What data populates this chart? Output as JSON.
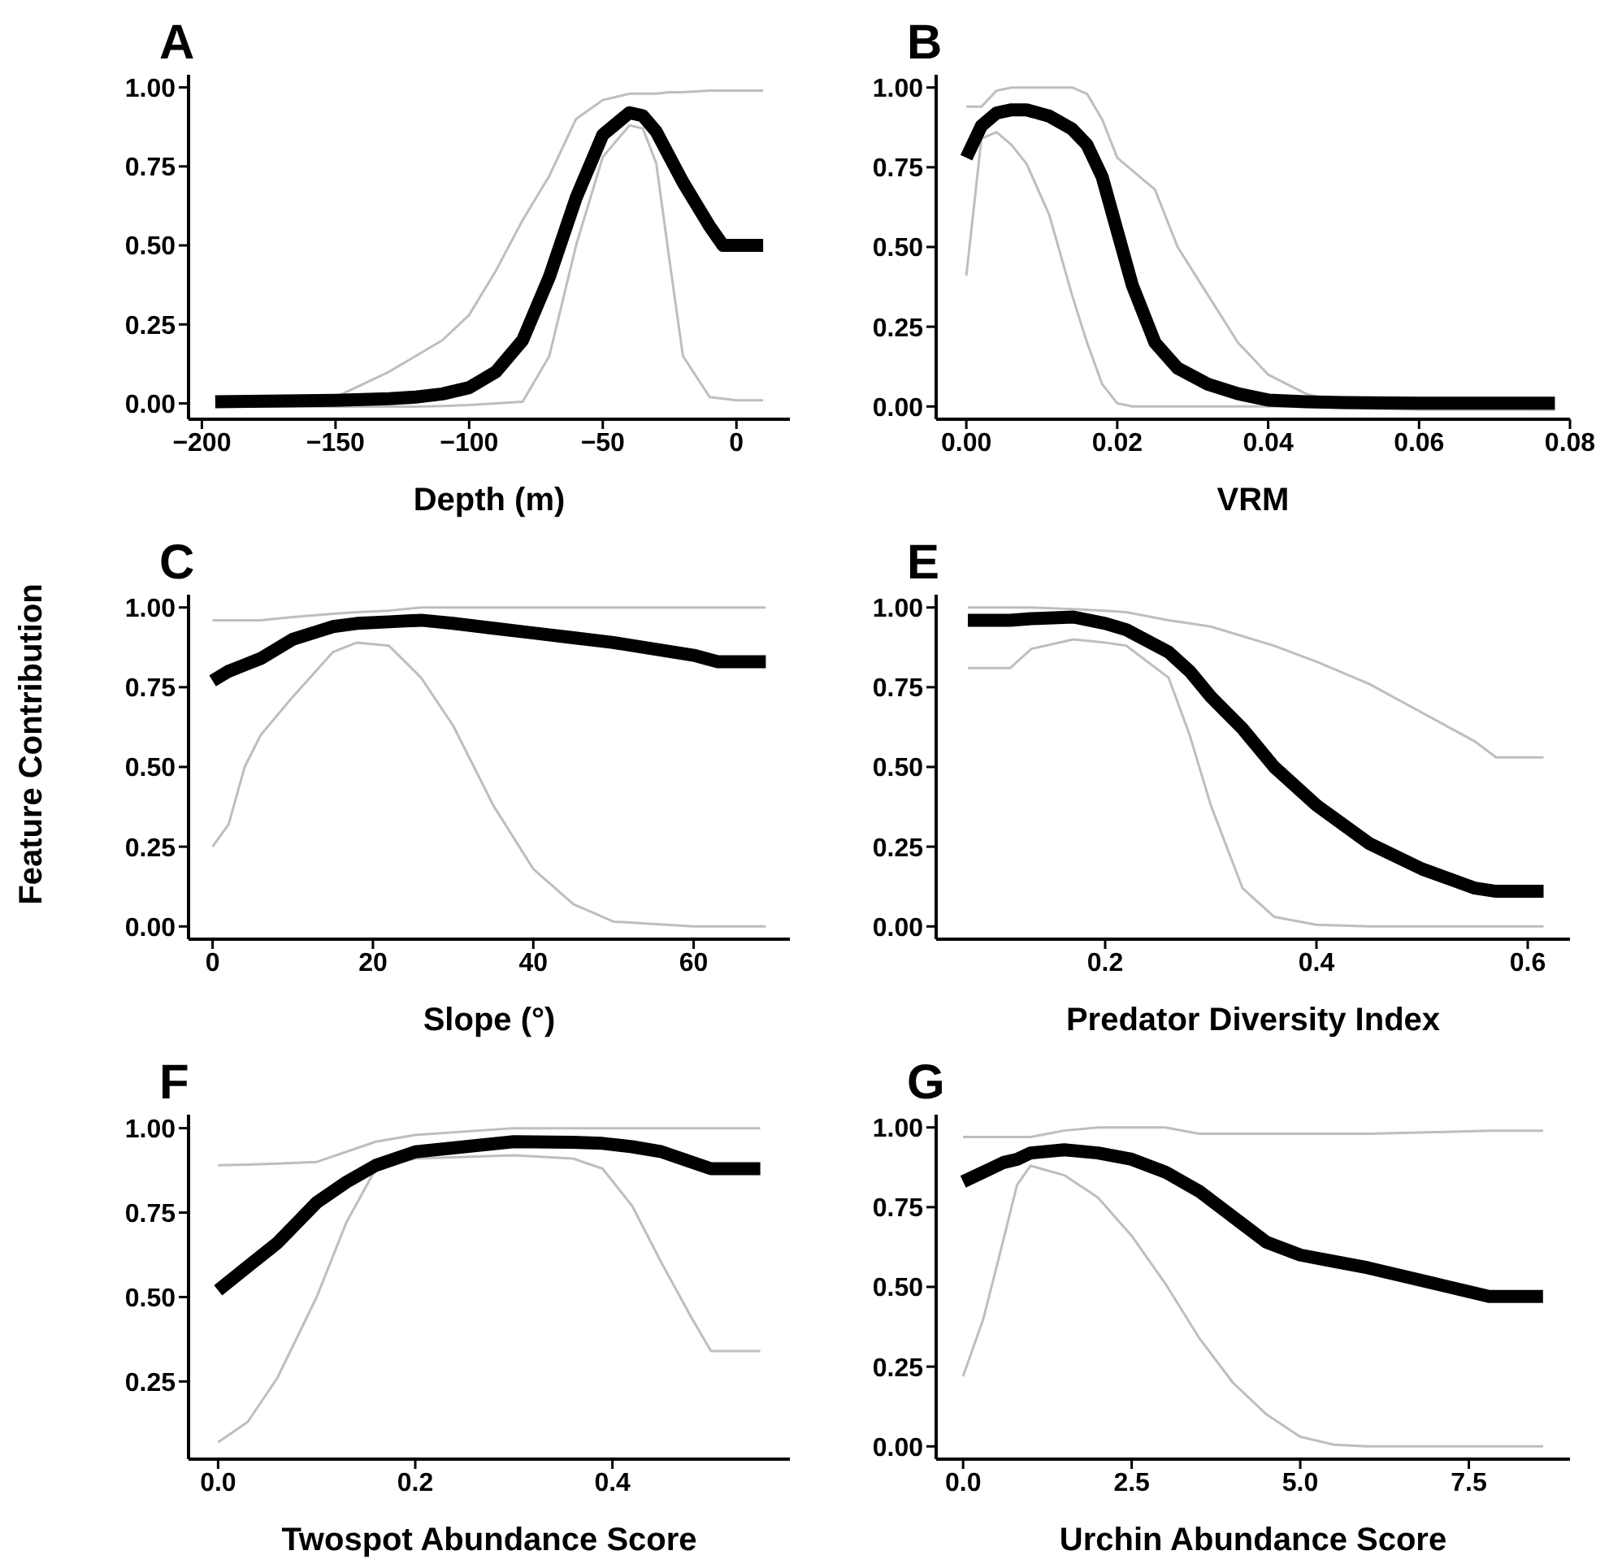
{
  "chart_data": [
    {
      "type": "line",
      "title": "A",
      "xlabel": "Depth (m)",
      "xlim": [
        -205,
        20
      ],
      "xticks": [
        {
          "value": -200,
          "label": "−200"
        },
        {
          "value": -150,
          "label": "−150"
        },
        {
          "value": -100,
          "label": "−100"
        },
        {
          "value": -50,
          "label": "−50"
        },
        0
      ],
      "ylim": [
        -0.05,
        1.04
      ],
      "yticks": [
        {
          "value": 0,
          "label": "0.00"
        },
        {
          "value": 0.25,
          "label": "0.25"
        },
        {
          "value": 0.5,
          "label": "0.50"
        },
        {
          "value": 0.75,
          "label": "0.75"
        },
        {
          "value": 1,
          "label": "1.00"
        }
      ],
      "x": [
        -195,
        -150,
        -130,
        -120,
        -110,
        -100,
        -90,
        -80,
        -70,
        -60,
        -50,
        -40,
        -35,
        -30,
        -25,
        -20,
        -10,
        -5,
        0,
        10
      ],
      "series": [
        {
          "color": "#bebebe",
          "values": [
            0.02,
            0.02,
            0.1,
            0.15,
            0.2,
            0.28,
            0.42,
            0.58,
            0.72,
            0.9,
            0.96,
            0.98,
            0.98,
            0.98,
            0.985,
            0.985,
            0.99,
            0.99,
            0.99,
            0.99
          ]
        },
        {
          "color": "#bebebe",
          "values": [
            -0.01,
            -0.01,
            -0.01,
            -0.01,
            -0.008,
            -0.005,
            0,
            0.005,
            0.15,
            0.5,
            0.78,
            0.88,
            0.87,
            0.76,
            0.45,
            0.15,
            0.02,
            0.015,
            0.01,
            0.01
          ]
        },
        {
          "color": "#000000",
          "values": [
            0.005,
            0.01,
            0.015,
            0.02,
            0.03,
            0.05,
            0.1,
            0.2,
            0.4,
            0.65,
            0.85,
            0.92,
            0.91,
            0.86,
            0.78,
            0.7,
            0.56,
            0.5,
            0.5,
            0.5
          ]
        }
      ]
    },
    {
      "type": "line",
      "title": "B",
      "xlabel": "VRM",
      "xlim": [
        -0.004,
        0.08
      ],
      "xticks": [
        {
          "value": 0,
          "label": "0.00"
        },
        {
          "value": 0.02,
          "label": "0.02"
        },
        {
          "value": 0.04,
          "label": "0.04"
        },
        {
          "value": 0.06,
          "label": "0.06"
        },
        {
          "value": 0.08,
          "label": "0.08"
        }
      ],
      "ylim": [
        -0.04,
        1.04
      ],
      "yticks": [
        {
          "value": 0,
          "label": "0.00"
        },
        {
          "value": 0.25,
          "label": "0.25"
        },
        {
          "value": 0.5,
          "label": "0.50"
        },
        {
          "value": 0.75,
          "label": "0.75"
        },
        {
          "value": 1,
          "label": "1.00"
        }
      ],
      "x": [
        0,
        0.002,
        0.004,
        0.006,
        0.008,
        0.011,
        0.014,
        0.016,
        0.018,
        0.02,
        0.022,
        0.025,
        0.028,
        0.032,
        0.036,
        0.04,
        0.045,
        0.05,
        0.06,
        0.078
      ],
      "series": [
        {
          "color": "#bebebe",
          "values": [
            0.94,
            0.94,
            0.99,
            1,
            1,
            1,
            1,
            0.98,
            0.9,
            0.78,
            0.74,
            0.68,
            0.5,
            0.35,
            0.2,
            0.1,
            0.04,
            0.01,
            0,
            -0.01
          ]
        },
        {
          "color": "#bebebe",
          "values": [
            0.41,
            0.84,
            0.86,
            0.82,
            0.76,
            0.6,
            0.35,
            0.2,
            0.07,
            0.01,
            0,
            0,
            0,
            0,
            0,
            0,
            0,
            -0.005,
            -0.01,
            -0.01
          ]
        },
        {
          "color": "#000000",
          "values": [
            0.78,
            0.88,
            0.92,
            0.93,
            0.93,
            0.91,
            0.87,
            0.82,
            0.72,
            0.55,
            0.38,
            0.2,
            0.12,
            0.07,
            0.04,
            0.02,
            0.015,
            0.012,
            0.01,
            0.01
          ]
        }
      ]
    },
    {
      "type": "line",
      "title": "C",
      "xlabel": "Slope (°)",
      "ylabel": "Feature Contribution",
      "xlim": [
        -3,
        72
      ],
      "xticks": [
        0,
        20,
        40,
        60
      ],
      "ylim": [
        -0.04,
        1.04
      ],
      "yticks": [
        {
          "value": 0,
          "label": "0.00"
        },
        {
          "value": 0.25,
          "label": "0.25"
        },
        {
          "value": 0.5,
          "label": "0.50"
        },
        {
          "value": 0.75,
          "label": "0.75"
        },
        {
          "value": 1,
          "label": "1.00"
        }
      ],
      "x": [
        0,
        2,
        4,
        6,
        10,
        15,
        18,
        22,
        26,
        30,
        35,
        40,
        45,
        50,
        60,
        63,
        69
      ],
      "series": [
        {
          "color": "#bebebe",
          "values": [
            0.96,
            0.96,
            0.96,
            0.96,
            0.97,
            0.98,
            0.985,
            0.99,
            1,
            1,
            1,
            1,
            1,
            1,
            1,
            1,
            1
          ]
        },
        {
          "color": "#bebebe",
          "values": [
            0.25,
            0.32,
            0.5,
            0.6,
            0.72,
            0.86,
            0.89,
            0.88,
            0.78,
            0.63,
            0.38,
            0.18,
            0.07,
            0.015,
            0,
            0,
            0
          ]
        },
        {
          "color": "#000000",
          "values": [
            0.77,
            0.8,
            0.82,
            0.84,
            0.9,
            0.94,
            0.95,
            0.955,
            0.96,
            0.95,
            0.935,
            0.92,
            0.905,
            0.89,
            0.85,
            0.83,
            0.83
          ]
        }
      ]
    },
    {
      "type": "line",
      "title": "E",
      "xlabel": "Predator Diversity Index",
      "xlim": [
        0.04,
        0.64
      ],
      "xticks": [
        0.2,
        0.4,
        0.6
      ],
      "ylim": [
        -0.04,
        1.04
      ],
      "yticks": [
        {
          "value": 0,
          "label": "0.00"
        },
        {
          "value": 0.25,
          "label": "0.25"
        },
        {
          "value": 0.5,
          "label": "0.50"
        },
        {
          "value": 0.75,
          "label": "0.75"
        },
        {
          "value": 1,
          "label": "1.00"
        }
      ],
      "x": [
        0.07,
        0.11,
        0.13,
        0.17,
        0.2,
        0.22,
        0.26,
        0.28,
        0.3,
        0.33,
        0.36,
        0.4,
        0.45,
        0.5,
        0.55,
        0.57,
        0.615
      ],
      "series": [
        {
          "color": "#bebebe",
          "values": [
            1,
            1,
            1,
            0.995,
            0.99,
            0.985,
            0.96,
            0.95,
            0.94,
            0.91,
            0.88,
            0.83,
            0.76,
            0.67,
            0.58,
            0.53,
            0.53
          ]
        },
        {
          "color": "#bebebe",
          "values": [
            0.81,
            0.81,
            0.87,
            0.9,
            0.89,
            0.88,
            0.78,
            0.6,
            0.38,
            0.12,
            0.03,
            0.005,
            0,
            0,
            0,
            0,
            0
          ]
        },
        {
          "color": "#000000",
          "values": [
            0.96,
            0.96,
            0.965,
            0.97,
            0.95,
            0.93,
            0.86,
            0.8,
            0.72,
            0.62,
            0.5,
            0.38,
            0.26,
            0.18,
            0.12,
            0.11,
            0.11
          ]
        }
      ]
    },
    {
      "type": "line",
      "title": "F",
      "xlabel": "Twospot Abundance Score",
      "xlim": [
        -0.03,
        0.58
      ],
      "xticks": [
        {
          "value": 0,
          "label": "0.0"
        },
        0.2,
        0.4
      ],
      "ylim": [
        0.02,
        1.04
      ],
      "yticks": [
        {
          "value": 0.25,
          "label": "0.25"
        },
        {
          "value": 0.5,
          "label": "0.50"
        },
        {
          "value": 0.75,
          "label": "0.75"
        },
        {
          "value": 1,
          "label": "1.00"
        }
      ],
      "x": [
        0,
        0.03,
        0.06,
        0.1,
        0.13,
        0.16,
        0.2,
        0.3,
        0.36,
        0.39,
        0.42,
        0.45,
        0.48,
        0.5,
        0.55
      ],
      "series": [
        {
          "color": "#bebebe",
          "values": [
            0.89,
            0.892,
            0.895,
            0.9,
            0.93,
            0.96,
            0.98,
            1,
            1,
            1,
            1,
            1,
            1,
            1,
            1
          ]
        },
        {
          "color": "#bebebe",
          "values": [
            0.07,
            0.13,
            0.26,
            0.5,
            0.72,
            0.88,
            0.91,
            0.92,
            0.91,
            0.88,
            0.77,
            0.6,
            0.44,
            0.34,
            0.34
          ]
        },
        {
          "color": "#000000",
          "values": [
            0.52,
            0.59,
            0.66,
            0.78,
            0.84,
            0.89,
            0.93,
            0.96,
            0.958,
            0.955,
            0.945,
            0.93,
            0.9,
            0.88,
            0.88
          ]
        }
      ]
    },
    {
      "type": "line",
      "title": "G",
      "xlabel": "Urchin Abundance Score",
      "xlim": [
        -0.4,
        9
      ],
      "xticks": [
        {
          "value": 0,
          "label": "0.0"
        },
        2.5,
        {
          "value": 5,
          "label": "5.0"
        },
        7.5
      ],
      "ylim": [
        -0.04,
        1.04
      ],
      "yticks": [
        {
          "value": 0,
          "label": "0.00"
        },
        {
          "value": 0.25,
          "label": "0.25"
        },
        {
          "value": 0.5,
          "label": "0.50"
        },
        {
          "value": 0.75,
          "label": "0.75"
        },
        {
          "value": 1,
          "label": "1.00"
        }
      ],
      "x": [
        0,
        0.3,
        0.6,
        0.8,
        1,
        1.5,
        2,
        2.5,
        3,
        3.5,
        4,
        4.5,
        5,
        5.5,
        6,
        7,
        7.8,
        8.6
      ],
      "series": [
        {
          "color": "#bebebe",
          "values": [
            0.97,
            0.97,
            0.97,
            0.97,
            0.97,
            0.99,
            1,
            1,
            1,
            0.98,
            0.98,
            0.98,
            0.98,
            0.98,
            0.98,
            0.985,
            0.99,
            0.99
          ]
        },
        {
          "color": "#bebebe",
          "values": [
            0.22,
            0.4,
            0.65,
            0.82,
            0.88,
            0.85,
            0.78,
            0.66,
            0.51,
            0.34,
            0.2,
            0.1,
            0.03,
            0.005,
            0,
            0,
            0,
            0
          ]
        },
        {
          "color": "#000000",
          "values": [
            0.83,
            0.86,
            0.89,
            0.9,
            0.92,
            0.93,
            0.92,
            0.9,
            0.86,
            0.8,
            0.72,
            0.64,
            0.6,
            0.58,
            0.56,
            0.51,
            0.47,
            0.47
          ]
        }
      ]
    }
  ]
}
